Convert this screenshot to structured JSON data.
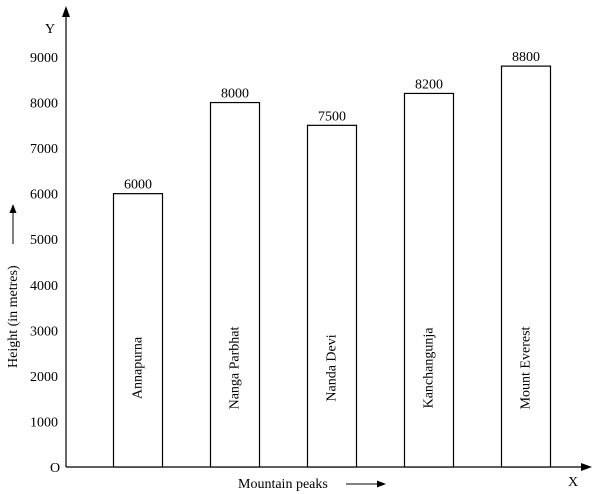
{
  "chart_data": {
    "type": "bar",
    "categories": [
      "Annapurna",
      "Nanga Parbhat",
      "Nanda Devi",
      "Kanchangunja",
      "Mount Everest"
    ],
    "values": [
      6000,
      8000,
      7500,
      8200,
      8800
    ],
    "data_labels": [
      "6000",
      "8000",
      "7500",
      "8200",
      "8800"
    ],
    "title": "",
    "xlabel": "Mountain peaks",
    "ylabel": "Height (in metres)",
    "x_axis_letter": "X",
    "y_axis_letter": "Y",
    "origin_label": "O",
    "ylim": [
      0,
      9000
    ],
    "yticks": [
      "1000",
      "2000",
      "3000",
      "4000",
      "5000",
      "6000",
      "7000",
      "8000",
      "9000"
    ],
    "ytick_values": [
      1000,
      2000,
      3000,
      4000,
      5000,
      6000,
      7000,
      8000,
      9000
    ],
    "category_label_orientation": "vertical",
    "grid": false,
    "legend": "none",
    "bar_fill": "#ffffff",
    "bar_stroke": "#000000"
  }
}
